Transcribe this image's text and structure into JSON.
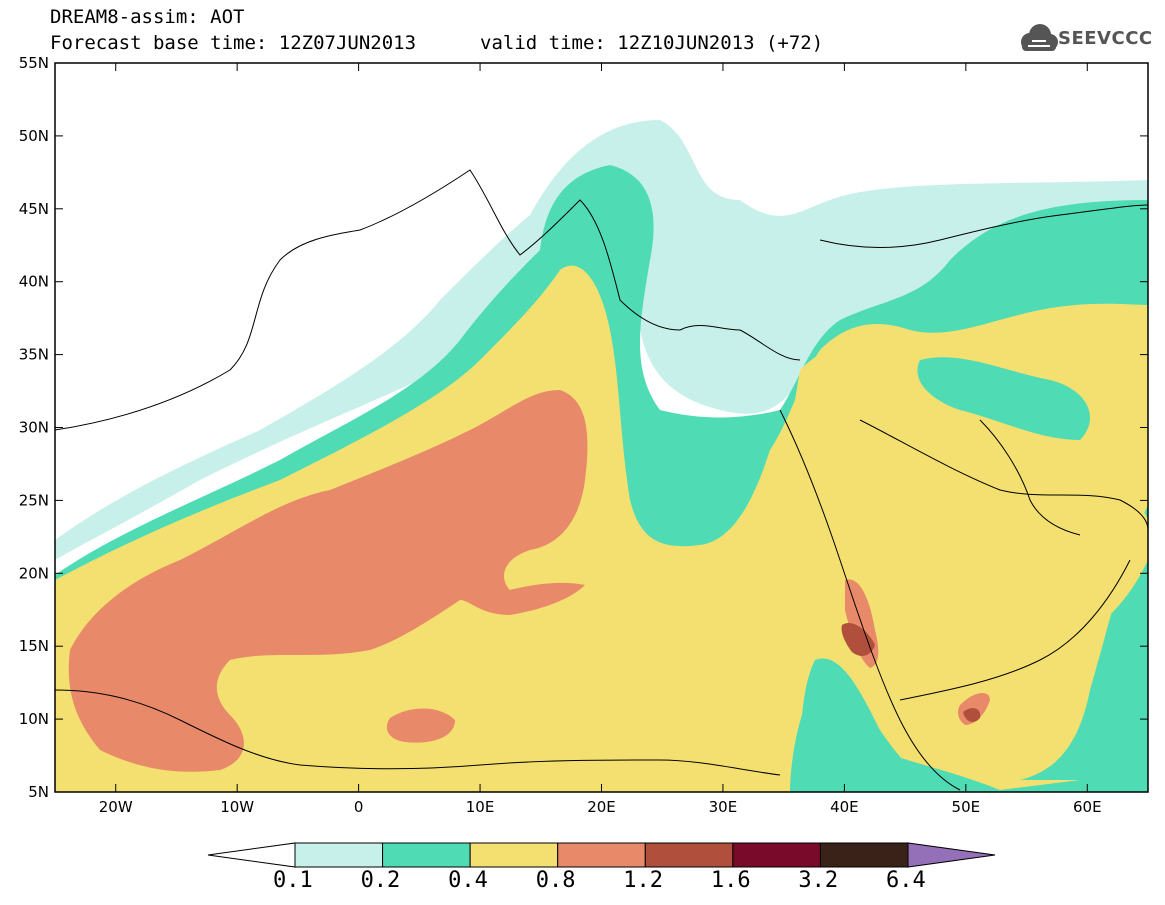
{
  "header": {
    "title": "DREAM8-assim: AOT",
    "base_time": "Forecast base time: 12Z07JUN2013",
    "valid_time": "valid time: 12Z10JUN2013 (+72)",
    "logo_text": "SEEVCCC"
  },
  "map": {
    "lon_range": [
      -25,
      65
    ],
    "lat_range": [
      5,
      55
    ],
    "lat_ticks": [
      "5N",
      "10N",
      "15N",
      "20N",
      "25N",
      "30N",
      "35N",
      "40N",
      "45N",
      "50N",
      "55N"
    ],
    "lon_ticks": [
      "20W",
      "10W",
      "0",
      "10E",
      "20E",
      "30E",
      "40E",
      "50E",
      "60E"
    ],
    "variable": "AOT"
  },
  "colorbar": {
    "labels": [
      "0.1",
      "0.2",
      "0.4",
      "0.8",
      "1.2",
      "1.6",
      "3.2",
      "6.4"
    ],
    "colors": [
      "#ffffff",
      "#c8f0ea",
      "#4fdcb4",
      "#f4e070",
      "#e88a6a",
      "#b0503c",
      "#7a0a2a",
      "#3a2218",
      "#9470b8"
    ]
  }
}
